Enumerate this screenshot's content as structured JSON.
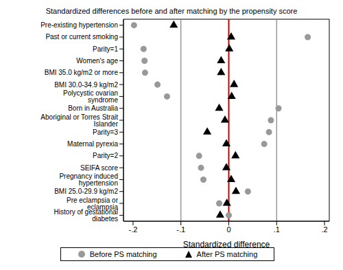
{
  "chart_data": {
    "type": "scatter",
    "title": "Standardized differences before and after matching by the propensity score",
    "x_label": "Standardized difference",
    "categories": [
      "Pre-existing hypertension",
      "Past or current smoking",
      "Parity=1",
      "Women's age",
      "BMI 35.0 kg/m2 or more",
      "BMI 30.0-34.9 kg/m2",
      "Polycystic ovarian syndrome",
      "Born in Australia",
      "Aboriginal or Torres Strait Islander",
      "Parity=3",
      "Maternal pyrexia",
      "Parity=2",
      "SEIFA score",
      "Pregnancy induced hypertension",
      "BMI 25.0-29.9 kg/m2",
      "Pre eclampsia or eclampsia",
      "History of gestational diabetes"
    ],
    "series": [
      {
        "name": "Before PS matching",
        "color": "#999999",
        "marker": "circle",
        "values": [
          -0.198,
          0.165,
          -0.178,
          -0.176,
          -0.175,
          -0.149,
          -0.129,
          0.104,
          0.088,
          0.084,
          0.074,
          -0.062,
          -0.058,
          -0.053,
          0.04,
          -0.02,
          0.0
        ]
      },
      {
        "name": "After PS matching",
        "color": "#000000",
        "marker": "triangle",
        "values": [
          -0.115,
          0.005,
          0.001,
          -0.016,
          -0.016,
          0.011,
          0.006,
          -0.02,
          -0.008,
          -0.045,
          -0.005,
          0.014,
          -0.005,
          0.005,
          0.015,
          -0.004,
          -0.018
        ]
      }
    ],
    "xlim": [
      -0.22,
      0.21
    ],
    "xticks": [
      {
        "value": -0.2,
        "label": "-.2"
      },
      {
        "value": -0.1,
        "label": "-.1"
      },
      0,
      {
        "value": 0.1,
        "label": ".1"
      },
      {
        "value": 0.2,
        "label": ".2"
      }
    ],
    "reference_lines": [
      {
        "value": -0.1,
        "color": "#808080"
      },
      {
        "value": 0,
        "color": "#cc0000"
      },
      {
        "value": 0.1,
        "color": "#808080"
      }
    ],
    "legend": "bottom"
  }
}
